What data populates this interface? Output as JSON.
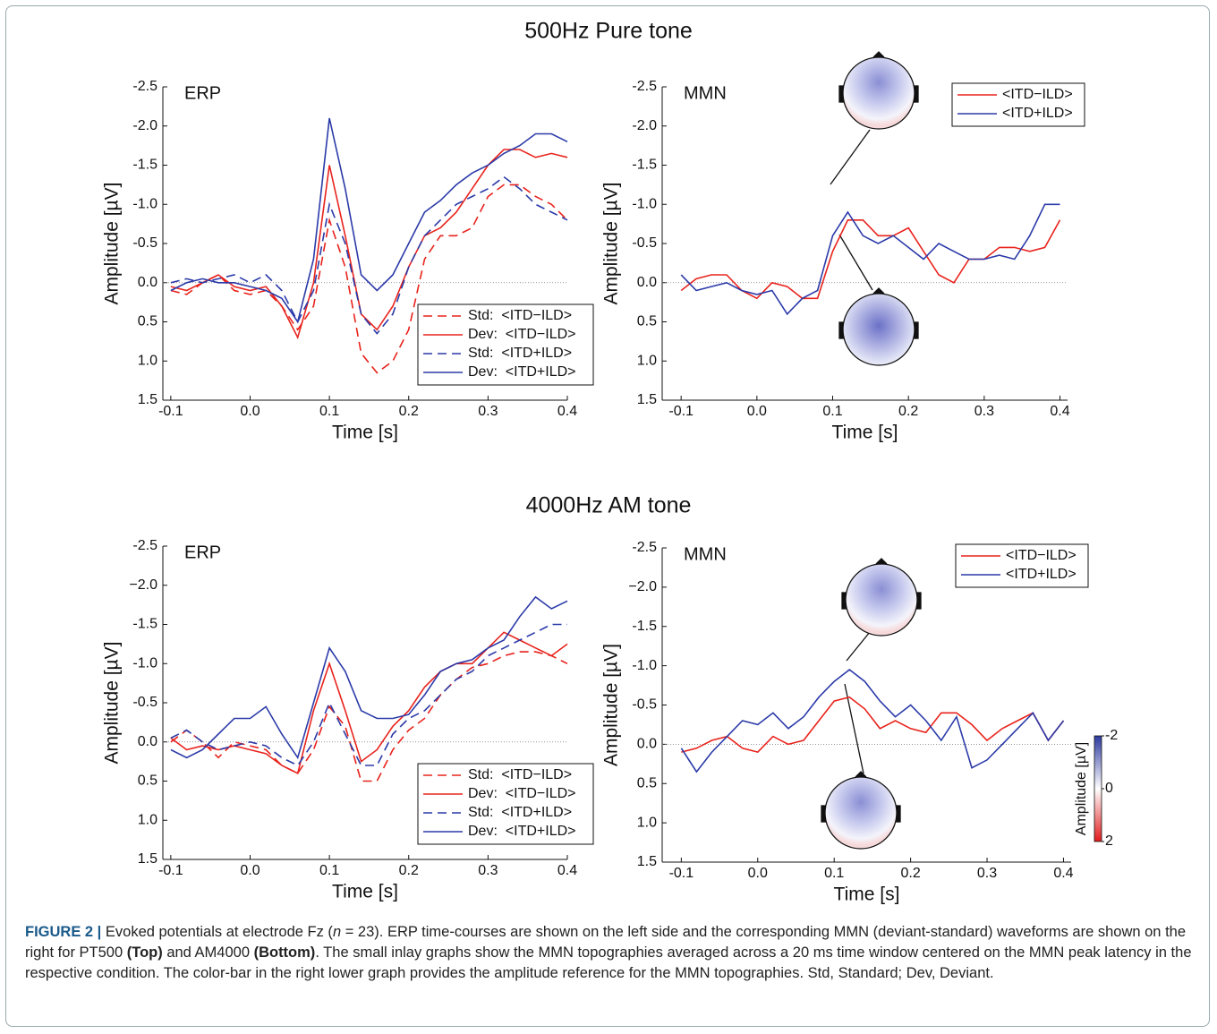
{
  "section_titles": [
    "500Hz Pure tone",
    "4000Hz AM tone"
  ],
  "chart_data": [
    {
      "type": "line",
      "panel_label": "ERP",
      "xlabel": "Time [s]",
      "ylabel": "Amplitude [µV]",
      "y_inverted": true,
      "zero_line": true,
      "legend": "lower right",
      "x": [
        -0.1,
        -0.08,
        -0.06,
        -0.04,
        -0.02,
        0,
        0.02,
        0.04,
        0.06,
        0.08,
        0.1,
        0.12,
        0.14,
        0.16,
        0.18,
        0.2,
        0.22,
        0.24,
        0.26,
        0.28,
        0.3,
        0.32,
        0.34,
        0.36,
        0.38,
        0.4
      ],
      "xlim": [
        -0.11,
        0.4
      ],
      "xticks": [
        -0.1,
        {
          "value": 0,
          "label": "0.0"
        },
        0.1,
        0.2,
        0.3,
        0.4
      ],
      "ylim": [
        -2.5,
        1.5
      ],
      "yticks": [
        -2.5,
        {
          "value": -2,
          "label": "-2.0"
        },
        -1.5,
        {
          "value": -1,
          "label": "-1.0"
        },
        -0.5,
        {
          "value": 0,
          "label": "0.0"
        },
        0.5,
        {
          "value": 1,
          "label": "1.0"
        },
        1.5
      ],
      "series": [
        {
          "name": "Std:  <ITD−ILD>",
          "color": "#e8231c",
          "dashed": true,
          "values": [
            0.1,
            0.15,
            0,
            -0.1,
            0.1,
            0.15,
            0.1,
            0.3,
            0.6,
            0.3,
            -0.8,
            -0.2,
            0.9,
            1.15,
            1.0,
            0.6,
            -0.3,
            -0.6,
            -0.6,
            -0.7,
            -1.1,
            -1.25,
            -1.25,
            -1.1,
            -1.0,
            -0.8
          ]
        },
        {
          "name": "Dev:  <ITD−ILD>",
          "color": "#e8231c",
          "dashed": false,
          "values": [
            0.05,
            0.1,
            0,
            -0.1,
            0.05,
            0.1,
            0.05,
            0.3,
            0.7,
            0,
            -1.5,
            -0.6,
            0.4,
            0.6,
            0.3,
            -0.2,
            -0.6,
            -0.7,
            -0.9,
            -1.2,
            -1.5,
            -1.7,
            -1.7,
            -1.6,
            -1.65,
            -1.6
          ]
        },
        {
          "name": "Std:  <ITD+ILD>",
          "color": "#2b3aa8",
          "dashed": true,
          "values": [
            0,
            -0.05,
            0,
            -0.05,
            -0.1,
            0,
            -0.1,
            0.1,
            0.5,
            0.1,
            -1.0,
            -0.5,
            0.4,
            0.65,
            0.4,
            -0.2,
            -0.6,
            -0.8,
            -1.0,
            -1.1,
            -1.2,
            -1.35,
            -1.2,
            -1.0,
            -0.9,
            -0.8
          ]
        },
        {
          "name": "Dev:  <ITD+ILD>",
          "color": "#2b3aa8",
          "dashed": false,
          "values": [
            0.1,
            0,
            -0.05,
            0,
            0,
            0.05,
            0.1,
            0.2,
            0.5,
            -0.3,
            -2.1,
            -1.2,
            -0.1,
            0.1,
            -0.1,
            -0.5,
            -0.9,
            -1.05,
            -1.25,
            -1.4,
            -1.5,
            -1.65,
            -1.75,
            -1.9,
            -1.9,
            -1.8
          ]
        }
      ]
    },
    {
      "type": "line",
      "panel_label": "MMN",
      "xlabel": "Time [s]",
      "ylabel": "Amplitude [µV]",
      "y_inverted": true,
      "zero_line": true,
      "legend": "upper right",
      "x": [
        -0.1,
        -0.08,
        -0.06,
        -0.04,
        -0.02,
        0,
        0.02,
        0.04,
        0.06,
        0.08,
        0.1,
        0.12,
        0.14,
        0.16,
        0.18,
        0.2,
        0.22,
        0.24,
        0.26,
        0.28,
        0.3,
        0.32,
        0.34,
        0.36,
        0.38,
        0.4
      ],
      "xlim": [
        -0.125,
        0.41
      ],
      "xticks": [
        -0.1,
        {
          "value": 0,
          "label": "0.0"
        },
        0.1,
        0.2,
        0.3,
        0.4
      ],
      "ylim": [
        -2.5,
        1.5
      ],
      "yticks": [
        -2.5,
        {
          "value": -2,
          "label": "-2.0"
        },
        -1.5,
        {
          "value": -1,
          "label": "-1.0"
        },
        -0.5,
        {
          "value": 0,
          "label": "0.0"
        },
        0.5,
        {
          "value": 1,
          "label": "1.0"
        },
        1.5
      ],
      "series": [
        {
          "name": "<ITD−ILD>",
          "color": "#e8231c",
          "dashed": false,
          "values": [
            0.1,
            -0.05,
            -0.1,
            -0.1,
            0.1,
            0.2,
            0,
            0.05,
            0.2,
            0.2,
            -0.4,
            -0.8,
            -0.8,
            -0.6,
            -0.6,
            -0.7,
            -0.4,
            -0.1,
            0,
            -0.3,
            -0.3,
            -0.45,
            -0.45,
            -0.4,
            -0.45,
            -0.8
          ]
        },
        {
          "name": "<ITD+ILD>",
          "color": "#2b3aa8",
          "dashed": false,
          "values": [
            -0.1,
            0.1,
            0.05,
            0,
            0.1,
            0.15,
            0.1,
            0.4,
            0.2,
            0.1,
            -0.6,
            -0.9,
            -0.6,
            -0.5,
            -0.6,
            -0.45,
            -0.3,
            -0.5,
            -0.4,
            -0.3,
            -0.3,
            -0.35,
            -0.3,
            -0.6,
            -1.0,
            -1.0
          ]
        }
      ]
    },
    {
      "type": "line",
      "panel_label": "ERP",
      "xlabel": "Time [s]",
      "ylabel": "Amplitude [µV]",
      "y_inverted": true,
      "zero_line": true,
      "legend": "lower right",
      "x": [
        -0.1,
        -0.08,
        -0.06,
        -0.04,
        -0.02,
        0,
        0.02,
        0.04,
        0.06,
        0.08,
        0.1,
        0.12,
        0.14,
        0.16,
        0.18,
        0.2,
        0.22,
        0.24,
        0.26,
        0.28,
        0.3,
        0.32,
        0.34,
        0.36,
        0.38,
        0.4
      ],
      "xlim": [
        -0.11,
        0.4
      ],
      "xticks": [
        -0.1,
        {
          "value": 0,
          "label": "0.0"
        },
        0.1,
        0.2,
        0.3,
        0.4
      ],
      "ylim": [
        -2.5,
        1.5
      ],
      "yticks": [
        -2.5,
        {
          "value": -2,
          "label": "−2.0"
        },
        -1.5,
        {
          "value": -1,
          "label": "-1.0"
        },
        -0.5,
        {
          "value": 0,
          "label": "0.0"
        },
        0.5,
        {
          "value": 1,
          "label": "1.0"
        },
        1.5
      ],
      "series": [
        {
          "name": "Std:  <ITD−ILD>",
          "color": "#e8231c",
          "dashed": true,
          "values": [
            0,
            -0.15,
            0,
            0.2,
            0,
            0.05,
            0.1,
            0.3,
            0.4,
            0.1,
            -0.45,
            -0.2,
            0.5,
            0.5,
            0.1,
            -0.15,
            -0.3,
            -0.6,
            -0.8,
            -0.95,
            -1.0,
            -1.1,
            -1.15,
            -1.15,
            -1.1,
            -1.0
          ]
        },
        {
          "name": "Dev:  <ITD−ILD>",
          "color": "#e8231c",
          "dashed": false,
          "values": [
            -0.05,
            0.1,
            0.05,
            0.1,
            0.05,
            0.1,
            0.15,
            0.3,
            0.4,
            -0.4,
            -1.0,
            -0.4,
            0.25,
            0.1,
            -0.2,
            -0.4,
            -0.7,
            -0.9,
            -1.0,
            -1.0,
            -1.2,
            -1.4,
            -1.3,
            -1.2,
            -1.1,
            -1.25
          ]
        },
        {
          "name": "Std:  <ITD+ILD>",
          "color": "#2b3aa8",
          "dashed": true,
          "values": [
            -0.05,
            -0.15,
            0,
            0.1,
            0.05,
            0,
            0.05,
            0.2,
            0.3,
            0,
            -0.5,
            -0.1,
            0.3,
            0.3,
            -0.1,
            -0.3,
            -0.4,
            -0.6,
            -0.8,
            -0.9,
            -1.1,
            -1.2,
            -1.3,
            -1.4,
            -1.5,
            -1.5
          ]
        },
        {
          "name": "Dev:  <ITD+ILD>",
          "color": "#2b3aa8",
          "dashed": false,
          "values": [
            0.1,
            0.2,
            0.1,
            -0.1,
            -0.3,
            -0.3,
            -0.45,
            -0.1,
            0.2,
            -0.5,
            -1.2,
            -0.9,
            -0.4,
            -0.3,
            -0.3,
            -0.35,
            -0.6,
            -0.9,
            -1.0,
            -1.05,
            -1.2,
            -1.3,
            -1.6,
            -1.85,
            -1.7,
            -1.8
          ]
        }
      ]
    },
    {
      "type": "line",
      "panel_label": "MMN",
      "xlabel": "Time [s]",
      "ylabel": "Amplitude [µV]",
      "y_inverted": true,
      "zero_line": true,
      "legend": "upper right",
      "x": [
        -0.1,
        -0.08,
        -0.06,
        -0.04,
        -0.02,
        0,
        0.02,
        0.04,
        0.06,
        0.08,
        0.1,
        0.12,
        0.14,
        0.16,
        0.18,
        0.2,
        0.22,
        0.24,
        0.26,
        0.28,
        0.3,
        0.32,
        0.34,
        0.36,
        0.38,
        0.4
      ],
      "xlim": [
        -0.125,
        0.41
      ],
      "xticks": [
        -0.1,
        {
          "value": 0,
          "label": "0.0"
        },
        0.1,
        0.2,
        0.3,
        0.4
      ],
      "ylim": [
        -2.5,
        1.5
      ],
      "yticks": [
        -2.5,
        {
          "value": -2,
          "label": "−2.0"
        },
        -1.5,
        {
          "value": -1,
          "label": "-1.0"
        },
        -0.5,
        {
          "value": 0,
          "label": "0.0"
        },
        0.5,
        {
          "value": 1,
          "label": "1.0"
        },
        1.5
      ],
      "colorbar": {
        "label": "Amplitude [µV]",
        "lim": [
          -2,
          2
        ],
        "ticks": [
          -2,
          0,
          2
        ]
      },
      "series": [
        {
          "name": "<ITD−ILD>",
          "color": "#e8231c",
          "dashed": false,
          "values": [
            0.1,
            0.05,
            -0.05,
            -0.1,
            0.05,
            0.1,
            -0.1,
            0,
            -0.05,
            -0.3,
            -0.55,
            -0.6,
            -0.45,
            -0.2,
            -0.3,
            -0.2,
            -0.15,
            -0.4,
            -0.4,
            -0.25,
            -0.05,
            -0.2,
            -0.3,
            -0.4,
            -0.05,
            -0.3
          ]
        },
        {
          "name": "<ITD+ILD>",
          "color": "#2b3aa8",
          "dashed": false,
          "values": [
            0.05,
            0.35,
            0.1,
            -0.1,
            -0.3,
            -0.25,
            -0.4,
            -0.2,
            -0.35,
            -0.6,
            -0.8,
            -0.95,
            -0.8,
            -0.55,
            -0.35,
            -0.5,
            -0.3,
            -0.05,
            -0.35,
            0.3,
            0.2,
            0,
            -0.2,
            -0.4,
            -0.05,
            -0.3
          ]
        }
      ]
    }
  ],
  "caption": [
    "FIGURE 2 |",
    " Evoked potentials at electrode Fz (",
    "n",
    " = 23). ERP time-courses are shown on the left side and the corresponding MMN (deviant-standard) waveforms are shown on the right for PT500 ",
    "(Top)",
    " and AM4000 ",
    "(Bottom)",
    ". The small inlay graphs show the MMN topographies averaged across a 20 ms time window centered on the MMN peak latency in the respective condition. The color-bar in the right lower graph provides the amplitude reference for the MMN topographies. Std, Standard; Dev, Deviant."
  ]
}
